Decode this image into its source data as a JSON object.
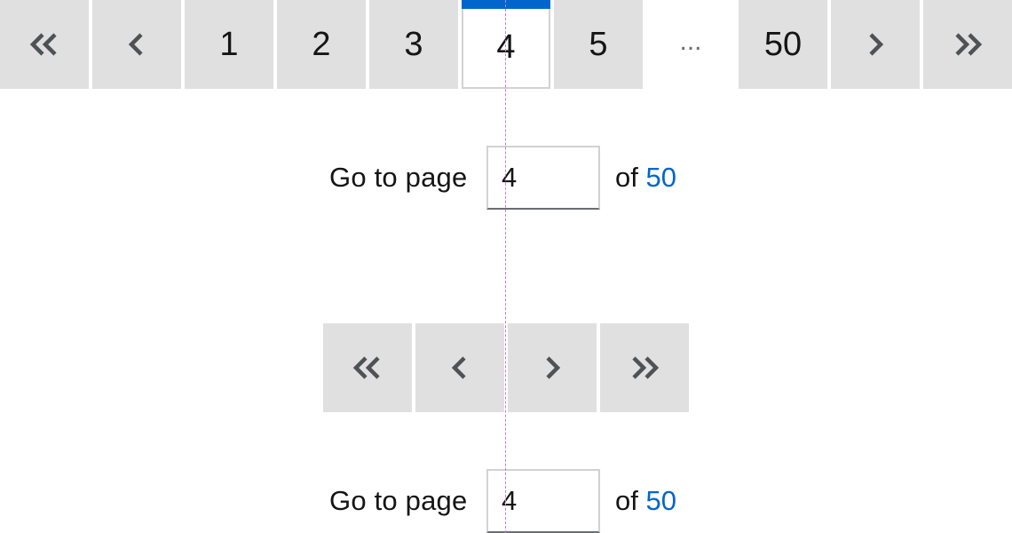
{
  "pager_full": {
    "first_icon": "double-chevron-left-icon",
    "prev_icon": "chevron-left-icon",
    "pages": [
      "1",
      "2",
      "3",
      "4",
      "5"
    ],
    "current_page": "4",
    "ellipsis": "...",
    "last_page": "50",
    "next_icon": "chevron-right-icon",
    "last_icon": "double-chevron-right-icon"
  },
  "goto_top": {
    "label": "Go to page",
    "value": "4",
    "of_text": "of",
    "total": "50"
  },
  "pager_compact": {
    "first_icon": "double-chevron-left-icon",
    "prev_icon": "chevron-left-icon",
    "next_icon": "chevron-right-icon",
    "last_icon": "double-chevron-right-icon"
  },
  "goto_bottom": {
    "label": "Go to page",
    "value": "4",
    "of_text": "of",
    "total": "50"
  },
  "colors": {
    "button_bg": "#e0e0e0",
    "active_accent": "#0066cc",
    "link_blue": "#0066cc",
    "text": "#151515",
    "icon": "#4f5255",
    "guide": "#c77ad6"
  }
}
